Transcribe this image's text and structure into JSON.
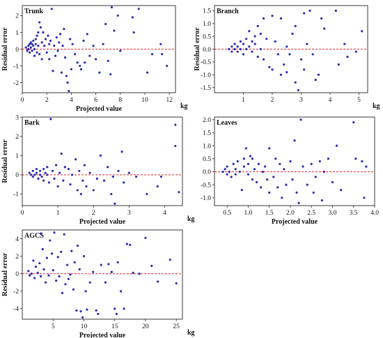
{
  "colors": {
    "point": "#2b2bb0",
    "zero_line": "#e0272b",
    "axis": "#222222"
  },
  "chart_data": [
    {
      "type": "scatter",
      "title": "Trunk",
      "xlabel": "Projected value",
      "ylabel": "Residual error",
      "unit": "kg",
      "xlim": [
        0,
        12.5
      ],
      "ylim": [
        -2.6,
        2.6
      ],
      "xticks": [
        0,
        2,
        4,
        6,
        8,
        10,
        12
      ],
      "yticks": [
        -2,
        -1,
        0,
        1,
        2
      ],
      "zero_line": true,
      "points": [
        [
          0.3,
          0.1
        ],
        [
          0.4,
          -0.1
        ],
        [
          0.5,
          0.2
        ],
        [
          0.5,
          0.0
        ],
        [
          0.6,
          0.3
        ],
        [
          0.6,
          -0.2
        ],
        [
          0.7,
          0.1
        ],
        [
          0.7,
          0.4
        ],
        [
          0.8,
          0.3
        ],
        [
          0.8,
          -0.1
        ],
        [
          0.9,
          0.5
        ],
        [
          0.9,
          0.2
        ],
        [
          1.0,
          0.0
        ],
        [
          1.0,
          -0.4
        ],
        [
          1.1,
          0.6
        ],
        [
          1.1,
          0.3
        ],
        [
          1.2,
          0.8
        ],
        [
          1.2,
          -0.2
        ],
        [
          1.3,
          1.0
        ],
        [
          1.3,
          0.2
        ],
        [
          1.4,
          1.6
        ],
        [
          1.4,
          -0.3
        ],
        [
          1.5,
          1.3
        ],
        [
          1.6,
          0.4
        ],
        [
          1.6,
          -0.6
        ],
        [
          1.7,
          1.0
        ],
        [
          1.8,
          0.2
        ],
        [
          1.9,
          0.6
        ],
        [
          2.0,
          -0.2
        ],
        [
          2.1,
          0.8
        ],
        [
          2.2,
          0.3
        ],
        [
          2.2,
          -0.6
        ],
        [
          2.3,
          0.5
        ],
        [
          2.4,
          2.4
        ],
        [
          2.5,
          -1.3
        ],
        [
          2.6,
          0.2
        ],
        [
          2.7,
          -0.4
        ],
        [
          2.8,
          0.7
        ],
        [
          2.9,
          -0.1
        ],
        [
          3.0,
          0.4
        ],
        [
          3.1,
          0.9
        ],
        [
          3.2,
          -1.4
        ],
        [
          3.3,
          0.2
        ],
        [
          3.4,
          1.2
        ],
        [
          3.5,
          -0.5
        ],
        [
          3.6,
          -1.6
        ],
        [
          3.7,
          -2.0
        ],
        [
          3.8,
          -2.5
        ],
        [
          3.9,
          0.6
        ],
        [
          4.0,
          -1.2
        ],
        [
          4.1,
          0.3
        ],
        [
          4.3,
          -0.3
        ],
        [
          4.5,
          -0.8
        ],
        [
          4.7,
          -1.0
        ],
        [
          4.8,
          -1.2
        ],
        [
          5.0,
          0.5
        ],
        [
          5.1,
          -0.8
        ],
        [
          5.3,
          0.9
        ],
        [
          5.5,
          -0.4
        ],
        [
          5.8,
          0.2
        ],
        [
          6.0,
          -0.6
        ],
        [
          6.3,
          -1.4
        ],
        [
          6.6,
          0.3
        ],
        [
          6.8,
          1.5
        ],
        [
          7.0,
          -0.7
        ],
        [
          7.2,
          -1.5
        ],
        [
          7.3,
          2.5
        ],
        [
          7.5,
          1.1
        ],
        [
          7.8,
          2.0
        ],
        [
          8.0,
          -0.1
        ],
        [
          9.0,
          1.9
        ],
        [
          9.1,
          1.0
        ],
        [
          9.5,
          2.4
        ],
        [
          10.2,
          -1.4
        ],
        [
          10.6,
          -0.3
        ],
        [
          11.3,
          0.3
        ],
        [
          11.4,
          -0.3
        ],
        [
          11.8,
          -1.0
        ]
      ]
    },
    {
      "type": "scatter",
      "title": "Branch",
      "xlabel": "",
      "ylabel": "Residual error",
      "unit": "kg",
      "xlim": [
        0,
        5.3
      ],
      "ylim": [
        -1.7,
        1.7
      ],
      "xticks": [
        1,
        2,
        3,
        4,
        5
      ],
      "yticks": [
        -1.5,
        -1.0,
        -0.5,
        0.0,
        0.5,
        1.0,
        1.5
      ],
      "zero_line": true,
      "points": [
        [
          0.5,
          0.0
        ],
        [
          0.6,
          0.1
        ],
        [
          0.6,
          -0.1
        ],
        [
          0.7,
          0.0
        ],
        [
          0.7,
          0.2
        ],
        [
          0.8,
          0.1
        ],
        [
          0.8,
          -0.1
        ],
        [
          0.9,
          0.3
        ],
        [
          0.9,
          0.0
        ],
        [
          1.0,
          0.2
        ],
        [
          1.0,
          -0.2
        ],
        [
          1.1,
          0.4
        ],
        [
          1.1,
          0.0
        ],
        [
          1.2,
          0.7
        ],
        [
          1.2,
          0.1
        ],
        [
          1.3,
          0.3
        ],
        [
          1.3,
          -0.1
        ],
        [
          1.4,
          0.5
        ],
        [
          1.4,
          0.2
        ],
        [
          1.5,
          0.9
        ],
        [
          1.5,
          -0.3
        ],
        [
          1.6,
          0.6
        ],
        [
          1.6,
          0.0
        ],
        [
          1.7,
          1.2
        ],
        [
          1.7,
          -0.4
        ],
        [
          1.8,
          0.4
        ],
        [
          1.9,
          -0.7
        ],
        [
          2.0,
          1.3
        ],
        [
          2.0,
          -0.8
        ],
        [
          2.1,
          0.3
        ],
        [
          2.2,
          -0.2
        ],
        [
          2.3,
          1.2
        ],
        [
          2.3,
          -1.0
        ],
        [
          2.4,
          -0.6
        ],
        [
          2.5,
          0.1
        ],
        [
          2.5,
          -0.9
        ],
        [
          2.6,
          -0.2
        ],
        [
          2.7,
          0.6
        ],
        [
          2.8,
          0.9
        ],
        [
          2.8,
          -1.3
        ],
        [
          2.9,
          -1.6
        ],
        [
          3.0,
          -0.4
        ],
        [
          3.1,
          1.4
        ],
        [
          3.1,
          -0.8
        ],
        [
          3.2,
          0.2
        ],
        [
          3.3,
          1.5
        ],
        [
          3.4,
          -0.2
        ],
        [
          3.5,
          -1.2
        ],
        [
          3.6,
          -1.0
        ],
        [
          3.7,
          1.2
        ],
        [
          3.8,
          0.8
        ],
        [
          4.2,
          1.5
        ],
        [
          4.3,
          -0.6
        ],
        [
          4.5,
          0.2
        ],
        [
          4.6,
          -0.3
        ],
        [
          4.9,
          -0.1
        ],
        [
          5.1,
          0.7
        ]
      ]
    },
    {
      "type": "scatter",
      "title": "Bark",
      "xlabel": "Projected value",
      "ylabel": "Residual error",
      "unit": "kg",
      "xlim": [
        0,
        4.5
      ],
      "ylim": [
        -1.6,
        3.0
      ],
      "xticks": [
        0,
        1,
        2,
        3,
        4
      ],
      "yticks": [
        -1,
        0,
        1,
        2,
        3
      ],
      "zero_line": true,
      "points": [
        [
          0.2,
          0.1
        ],
        [
          0.25,
          0.0
        ],
        [
          0.3,
          0.2
        ],
        [
          0.3,
          -0.1
        ],
        [
          0.35,
          0.0
        ],
        [
          0.4,
          0.3
        ],
        [
          0.4,
          0.1
        ],
        [
          0.45,
          -0.2
        ],
        [
          0.5,
          0.2
        ],
        [
          0.5,
          0.0
        ],
        [
          0.55,
          -0.1
        ],
        [
          0.6,
          0.3
        ],
        [
          0.6,
          -0.3
        ],
        [
          0.65,
          0.1
        ],
        [
          0.7,
          0.4
        ],
        [
          0.7,
          0.0
        ],
        [
          0.75,
          -0.4
        ],
        [
          0.8,
          2.9
        ],
        [
          0.85,
          0.2
        ],
        [
          0.9,
          -0.2
        ],
        [
          0.95,
          0.5
        ],
        [
          1.0,
          -0.6
        ],
        [
          1.05,
          0.1
        ],
        [
          1.1,
          1.1
        ],
        [
          1.15,
          -0.3
        ],
        [
          1.2,
          0.4
        ],
        [
          1.3,
          0.3
        ],
        [
          1.35,
          -0.5
        ],
        [
          1.4,
          0.0
        ],
        [
          1.5,
          0.8
        ],
        [
          1.55,
          -0.8
        ],
        [
          1.6,
          0.2
        ],
        [
          1.65,
          -1.0
        ],
        [
          1.7,
          -0.3
        ],
        [
          1.75,
          0.5
        ],
        [
          1.8,
          -0.6
        ],
        [
          1.9,
          0.1
        ],
        [
          2.0,
          -0.8
        ],
        [
          2.1,
          -0.2
        ],
        [
          2.2,
          1.0
        ],
        [
          2.3,
          -0.3
        ],
        [
          2.4,
          0.4
        ],
        [
          2.5,
          -1.0
        ],
        [
          2.55,
          -0.1
        ],
        [
          2.6,
          -1.5
        ],
        [
          2.7,
          0.2
        ],
        [
          2.8,
          1.2
        ],
        [
          2.85,
          -0.4
        ],
        [
          3.0,
          0.1
        ],
        [
          3.2,
          -0.1
        ],
        [
          3.5,
          -1.0
        ],
        [
          3.8,
          -0.6
        ],
        [
          3.9,
          -0.1
        ],
        [
          4.3,
          2.6
        ],
        [
          4.3,
          1.5
        ],
        [
          4.4,
          -0.9
        ]
      ]
    },
    {
      "type": "scatter",
      "title": "Leaves",
      "xlabel": "Projected value",
      "ylabel": "",
      "unit": "",
      "xlim": [
        0.2,
        4.0
      ],
      "ylim": [
        -1.3,
        2.1
      ],
      "xticks": [
        0.5,
        1.0,
        1.5,
        2.0,
        2.5,
        3.0,
        3.5,
        4.0
      ],
      "yticks": [
        -1.0,
        -0.5,
        0.0,
        0.5,
        1.0,
        1.5,
        2.0
      ],
      "zero_line": true,
      "points": [
        [
          0.4,
          0.0
        ],
        [
          0.45,
          0.1
        ],
        [
          0.5,
          -0.1
        ],
        [
          0.5,
          0.2
        ],
        [
          0.55,
          0.0
        ],
        [
          0.6,
          -0.2
        ],
        [
          0.65,
          0.3
        ],
        [
          0.7,
          0.1
        ],
        [
          0.7,
          -0.1
        ],
        [
          0.75,
          0.4
        ],
        [
          0.8,
          0.0
        ],
        [
          0.85,
          -0.7
        ],
        [
          0.9,
          0.5
        ],
        [
          0.9,
          0.2
        ],
        [
          0.95,
          0.9
        ],
        [
          1.0,
          -0.1
        ],
        [
          1.0,
          0.3
        ],
        [
          1.05,
          0.6
        ],
        [
          1.1,
          -0.3
        ],
        [
          1.1,
          0.5
        ],
        [
          1.15,
          0.1
        ],
        [
          1.2,
          -0.4
        ],
        [
          1.25,
          0.3
        ],
        [
          1.3,
          -0.6
        ],
        [
          1.35,
          0.0
        ],
        [
          1.4,
          0.2
        ],
        [
          1.45,
          -0.3
        ],
        [
          1.5,
          0.9
        ],
        [
          1.5,
          -0.8
        ],
        [
          1.6,
          -0.2
        ],
        [
          1.65,
          0.5
        ],
        [
          1.7,
          -0.6
        ],
        [
          1.75,
          0.3
        ],
        [
          1.8,
          -1.0
        ],
        [
          1.85,
          0.1
        ],
        [
          1.9,
          -0.5
        ],
        [
          2.0,
          0.4
        ],
        [
          2.05,
          -0.3
        ],
        [
          2.1,
          1.2
        ],
        [
          2.15,
          -0.8
        ],
        [
          2.2,
          -1.2
        ],
        [
          2.25,
          2.0
        ],
        [
          2.3,
          0.2
        ],
        [
          2.4,
          -0.5
        ],
        [
          2.5,
          0.3
        ],
        [
          2.55,
          -0.8
        ],
        [
          2.6,
          -0.2
        ],
        [
          2.7,
          0.4
        ],
        [
          2.75,
          -1.1
        ],
        [
          2.8,
          0.0
        ],
        [
          2.9,
          0.5
        ],
        [
          3.0,
          -0.4
        ],
        [
          3.1,
          1.0
        ],
        [
          3.2,
          -0.7
        ],
        [
          3.5,
          1.9
        ],
        [
          3.55,
          0.5
        ],
        [
          3.7,
          0.4
        ],
        [
          3.75,
          -1.0
        ],
        [
          3.8,
          0.2
        ]
      ]
    },
    {
      "type": "scatter",
      "title": "AGCS",
      "xlabel": "Projected value",
      "ylabel": "Residual error",
      "unit": "kg",
      "xlim": [
        0,
        26
      ],
      "ylim": [
        -5.2,
        5.0
      ],
      "xticks": [
        5,
        10,
        15,
        20,
        25
      ],
      "yticks": [
        -4,
        -2,
        0,
        2,
        4
      ],
      "zero_line": true,
      "points": [
        [
          1.0,
          0.3
        ],
        [
          1.2,
          -0.2
        ],
        [
          1.5,
          0.0
        ],
        [
          1.8,
          1.5
        ],
        [
          2.0,
          -0.5
        ],
        [
          2.2,
          0.8
        ],
        [
          2.5,
          0.1
        ],
        [
          2.8,
          1.2
        ],
        [
          3.0,
          4.6
        ],
        [
          3.0,
          -0.3
        ],
        [
          3.3,
          2.8
        ],
        [
          3.5,
          0.5
        ],
        [
          3.8,
          -1.0
        ],
        [
          4.0,
          1.8
        ],
        [
          4.3,
          -0.2
        ],
        [
          4.5,
          3.8
        ],
        [
          4.8,
          2.3
        ],
        [
          5.0,
          0.4
        ],
        [
          5.2,
          4.7
        ],
        [
          5.5,
          -0.8
        ],
        [
          5.8,
          1.9
        ],
        [
          6.0,
          -0.3
        ],
        [
          6.3,
          2.5
        ],
        [
          6.5,
          -2.2
        ],
        [
          6.8,
          4.5
        ],
        [
          7.0,
          -1.2
        ],
        [
          7.3,
          1.0
        ],
        [
          7.5,
          -0.6
        ],
        [
          7.8,
          -0.1
        ],
        [
          8.0,
          2.6
        ],
        [
          8.3,
          -1.8
        ],
        [
          8.5,
          1.3
        ],
        [
          8.8,
          -4.2
        ],
        [
          9.0,
          3.2
        ],
        [
          9.3,
          0.5
        ],
        [
          9.5,
          -4.3
        ],
        [
          9.8,
          -5.0
        ],
        [
          10.0,
          2.0
        ],
        [
          10.3,
          -2.0
        ],
        [
          10.5,
          -4.1
        ],
        [
          11.0,
          -1.0
        ],
        [
          11.5,
          0.2
        ],
        [
          12.0,
          -4.2
        ],
        [
          12.3,
          -4.6
        ],
        [
          12.8,
          1.0
        ],
        [
          13.5,
          -1.0
        ],
        [
          14.0,
          1.1
        ],
        [
          14.5,
          0.2
        ],
        [
          15.0,
          -4.0
        ],
        [
          15.3,
          -4.6
        ],
        [
          15.5,
          1.3
        ],
        [
          16.0,
          -2.0
        ],
        [
          16.5,
          -4.0
        ],
        [
          17.0,
          3.4
        ],
        [
          17.5,
          3.3
        ],
        [
          18.0,
          0.1
        ],
        [
          19.0,
          0.0
        ],
        [
          20.0,
          4.1
        ],
        [
          21.0,
          0.9
        ],
        [
          22.0,
          -0.9
        ],
        [
          24.0,
          1.6
        ],
        [
          25.0,
          -1.1
        ]
      ]
    }
  ]
}
